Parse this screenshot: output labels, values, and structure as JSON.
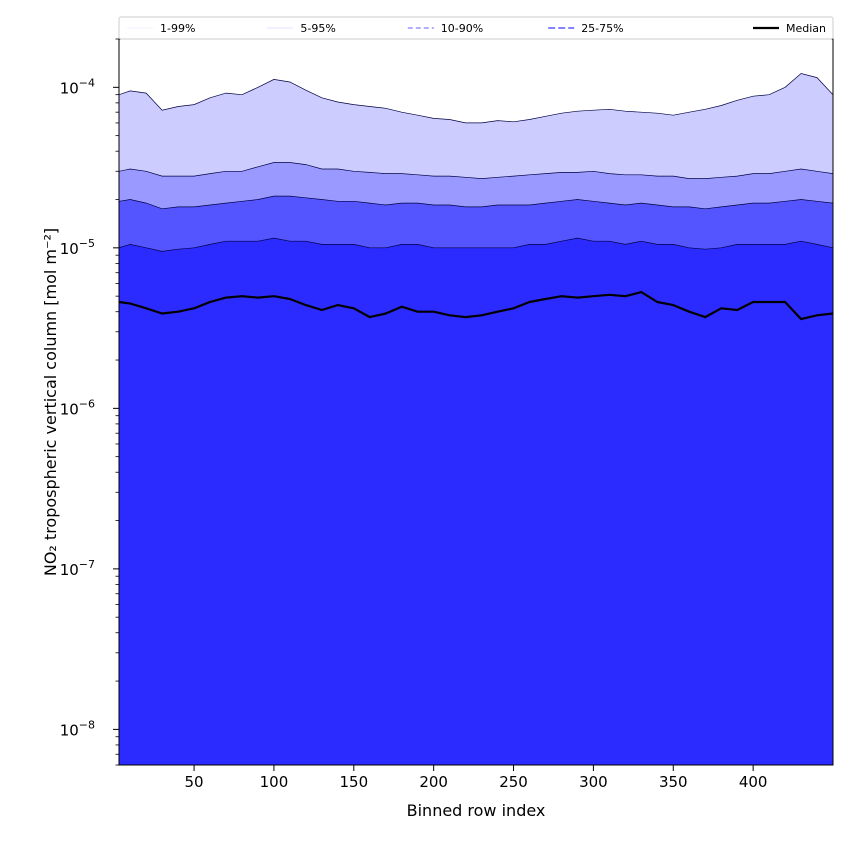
{
  "chart_data": {
    "type": "area",
    "title": "",
    "xlabel": "Binned row index",
    "ylabel": "NO₂ tropospheric vertical column [mol m⁻²]",
    "xlim": [
      3,
      450
    ],
    "ylim": [
      6e-09,
      0.0002
    ],
    "yscale": "log",
    "grid": false,
    "legend_position": "top",
    "x_ticks": [
      {
        "value": 50,
        "label": "50"
      },
      {
        "value": 100,
        "label": "100"
      },
      {
        "value": 150,
        "label": "150"
      },
      {
        "value": 200,
        "label": "200"
      },
      {
        "value": 250,
        "label": "250"
      },
      {
        "value": 300,
        "label": "300"
      },
      {
        "value": 350,
        "label": "350"
      },
      {
        "value": 400,
        "label": "400"
      }
    ],
    "y_ticks": [
      {
        "value": 1e-08,
        "base": "10",
        "exp": "−8"
      },
      {
        "value": 1e-07,
        "base": "10",
        "exp": "−7"
      },
      {
        "value": 1e-06,
        "base": "10",
        "exp": "−6"
      },
      {
        "value": 1e-05,
        "base": "10",
        "exp": "−5"
      },
      {
        "value": 0.0001,
        "base": "10",
        "exp": "−4"
      }
    ],
    "x": [
      3,
      10,
      20,
      30,
      40,
      50,
      60,
      70,
      80,
      90,
      100,
      110,
      120,
      130,
      140,
      150,
      160,
      170,
      180,
      190,
      200,
      210,
      220,
      230,
      240,
      250,
      260,
      270,
      280,
      290,
      300,
      310,
      320,
      330,
      340,
      350,
      360,
      370,
      380,
      390,
      400,
      410,
      420,
      430,
      440,
      450
    ],
    "bands": [
      {
        "name": "1-99%",
        "fill": "#ccccff",
        "line": "#e6e6ff",
        "dash": "none",
        "upper": [
          9e-05,
          9.5e-05,
          9.2e-05,
          7.2e-05,
          7.6e-05,
          7.8e-05,
          8.6e-05,
          9.2e-05,
          9e-05,
          0.0001,
          0.000112,
          0.000108,
          9.6e-05,
          8.6e-05,
          8.1e-05,
          7.8e-05,
          7.6e-05,
          7.4e-05,
          7e-05,
          6.7e-05,
          6.4e-05,
          6.3e-05,
          6e-05,
          6e-05,
          6.2e-05,
          6.1e-05,
          6.3e-05,
          6.6e-05,
          6.9e-05,
          7.1e-05,
          7.2e-05,
          7.3e-05,
          7.1e-05,
          7e-05,
          6.9e-05,
          6.7e-05,
          7e-05,
          7.3e-05,
          7.7e-05,
          8.3e-05,
          8.8e-05,
          9e-05,
          0.0001,
          0.000122,
          0.000115,
          9e-05
        ],
        "lower": [
          6e-09,
          6e-09,
          6e-09,
          6e-09,
          6e-09,
          6e-09,
          6e-09,
          6e-09,
          6e-09,
          6e-09,
          6e-09,
          6e-09,
          6e-09,
          6e-09,
          6e-09,
          6e-09,
          6e-09,
          6e-09,
          6e-09,
          6e-09,
          6e-09,
          6e-09,
          6e-09,
          6e-09,
          6e-09,
          6e-09,
          6e-09,
          6e-09,
          6e-09,
          6e-09,
          6e-09,
          6e-09,
          6e-09,
          6e-09,
          6e-09,
          6e-09,
          6e-09,
          6e-09,
          6e-09,
          6e-09,
          6e-09,
          6e-09,
          6e-09,
          6e-09,
          6e-09,
          6e-09
        ]
      },
      {
        "name": "5-95%",
        "fill": "#9999ff",
        "line": "#b3b3ff",
        "dash": "1,1",
        "upper": [
          3e-05,
          3.1e-05,
          3e-05,
          2.8e-05,
          2.8e-05,
          2.8e-05,
          2.9e-05,
          3e-05,
          3e-05,
          3.2e-05,
          3.4e-05,
          3.4e-05,
          3.3e-05,
          3.1e-05,
          3.1e-05,
          3e-05,
          2.95e-05,
          2.9e-05,
          2.9e-05,
          2.85e-05,
          2.8e-05,
          2.8e-05,
          2.75e-05,
          2.7e-05,
          2.75e-05,
          2.8e-05,
          2.85e-05,
          2.9e-05,
          2.95e-05,
          2.95e-05,
          3e-05,
          2.9e-05,
          2.85e-05,
          2.85e-05,
          2.8e-05,
          2.8e-05,
          2.7e-05,
          2.7e-05,
          2.75e-05,
          2.8e-05,
          2.9e-05,
          2.9e-05,
          3e-05,
          3.1e-05,
          3e-05,
          2.9e-05
        ],
        "lower": [
          6e-09,
          6e-09,
          6e-09,
          6e-09,
          6e-09,
          6e-09,
          6e-09,
          6e-09,
          6e-09,
          6e-09,
          6e-09,
          6e-09,
          6e-09,
          6e-09,
          6e-09,
          6e-09,
          6e-09,
          6e-09,
          6e-09,
          6e-09,
          6e-09,
          6e-09,
          6e-09,
          6e-09,
          6e-09,
          6e-09,
          6e-09,
          6e-09,
          6e-09,
          6e-09,
          6e-09,
          6e-09,
          6e-09,
          6e-09,
          6e-09,
          6e-09,
          6e-09,
          6e-09,
          6e-09,
          6e-09,
          6e-09,
          6e-09,
          6e-09,
          6e-09,
          6e-09,
          6e-09
        ]
      },
      {
        "name": "10-90%",
        "fill": "#5555ff",
        "line": "#8080ff",
        "dash": "5,3",
        "upper": [
          1.95e-05,
          2e-05,
          1.9e-05,
          1.75e-05,
          1.8e-05,
          1.8e-05,
          1.85e-05,
          1.9e-05,
          1.95e-05,
          2e-05,
          2.1e-05,
          2.1e-05,
          2.05e-05,
          2e-05,
          1.95e-05,
          1.95e-05,
          1.9e-05,
          1.85e-05,
          1.9e-05,
          1.9e-05,
          1.85e-05,
          1.85e-05,
          1.8e-05,
          1.8e-05,
          1.85e-05,
          1.85e-05,
          1.85e-05,
          1.9e-05,
          1.95e-05,
          2e-05,
          1.95e-05,
          1.9e-05,
          1.85e-05,
          1.9e-05,
          1.85e-05,
          1.8e-05,
          1.8e-05,
          1.75e-05,
          1.8e-05,
          1.85e-05,
          1.9e-05,
          1.9e-05,
          1.95e-05,
          2e-05,
          1.95e-05,
          1.9e-05
        ],
        "lower": [
          1e-07,
          1e-07,
          1e-07,
          1e-07,
          2e-07,
          3e-07,
          6e-07,
          8e-07,
          8e-07,
          8e-07,
          7e-07,
          7e-07,
          4e-07,
          1e-07,
          6e-09,
          6e-09,
          6e-09,
          6e-09,
          6e-09,
          6e-09,
          6e-09,
          6e-09,
          6e-09,
          6e-09,
          6e-09,
          6e-09,
          6e-09,
          6e-09,
          6e-09,
          6e-09,
          6e-09,
          6e-09,
          6e-09,
          6e-09,
          6e-09,
          6e-09,
          6e-09,
          6e-09,
          6e-09,
          6e-09,
          6e-09,
          6e-09,
          6e-09,
          6e-09,
          6e-09,
          6e-09
        ]
      },
      {
        "name": "25-75%",
        "fill": "#2b2bff",
        "line": "#5c5cff",
        "dash": "7,3",
        "upper": [
          1e-05,
          1.05e-05,
          1e-05,
          9.5e-06,
          9.8e-06,
          1e-05,
          1.05e-05,
          1.1e-05,
          1.1e-05,
          1.1e-05,
          1.15e-05,
          1.1e-05,
          1.1e-05,
          1.05e-05,
          1.05e-05,
          1.05e-05,
          1e-05,
          1e-05,
          1.05e-05,
          1.05e-05,
          1e-05,
          1e-05,
          1e-05,
          1e-05,
          1e-05,
          1e-05,
          1.05e-05,
          1.05e-05,
          1.1e-05,
          1.15e-05,
          1.1e-05,
          1.1e-05,
          1.05e-05,
          1.1e-05,
          1.05e-05,
          1.05e-05,
          1e-05,
          9.8e-06,
          1e-05,
          1.05e-05,
          1.05e-05,
          1.05e-05,
          1.05e-05,
          1.1e-05,
          1.05e-05,
          1e-05
        ],
        "lower": [
          6e-09,
          6e-09,
          6e-09,
          6e-09,
          6e-09,
          6e-09,
          6e-09,
          6e-09,
          6e-09,
          6e-09,
          6e-09,
          6e-09,
          6e-09,
          6e-09,
          6e-09,
          6e-09,
          6e-09,
          6e-09,
          6e-09,
          6e-09,
          6e-09,
          6e-09,
          6e-09,
          6e-09,
          6e-09,
          6e-09,
          6e-09,
          6e-09,
          6e-09,
          6e-09,
          6e-09,
          6e-09,
          6e-09,
          6e-09,
          6e-09,
          6e-09,
          6e-09,
          6e-09,
          6e-09,
          6e-09,
          6e-09,
          6e-09,
          6e-09,
          6e-09,
          6e-09,
          6e-09
        ]
      }
    ],
    "median": {
      "name": "Median",
      "color": "#000000",
      "values": [
        4.6e-06,
        4.5e-06,
        4.2e-06,
        3.9e-06,
        4e-06,
        4.2e-06,
        4.6e-06,
        4.9e-06,
        5e-06,
        4.9e-06,
        5e-06,
        4.8e-06,
        4.4e-06,
        4.1e-06,
        4.4e-06,
        4.2e-06,
        3.7e-06,
        3.9e-06,
        4.3e-06,
        4e-06,
        4e-06,
        3.8e-06,
        3.7e-06,
        3.8e-06,
        4e-06,
        4.2e-06,
        4.6e-06,
        4.8e-06,
        5e-06,
        4.9e-06,
        5e-06,
        5.1e-06,
        5e-06,
        5.3e-06,
        4.6e-06,
        4.4e-06,
        4e-06,
        3.7e-06,
        4.2e-06,
        4.1e-06,
        4.6e-06,
        4.6e-06,
        4.6e-06,
        3.6e-06,
        3.8e-06,
        3.9e-06
      ]
    },
    "legend": [
      {
        "label": "1-99%",
        "color": "#e6e6ff",
        "dash": "none",
        "width": 0.6
      },
      {
        "label": "5-95%",
        "color": "#b3b3ff",
        "dash": "1,1",
        "width": 0.8
      },
      {
        "label": "10-90%",
        "color": "#8080ff",
        "dash": "5,3",
        "width": 1.2
      },
      {
        "label": "25-75%",
        "color": "#5c5cff",
        "dash": "7,3",
        "width": 1.4
      },
      {
        "label": "Median",
        "color": "#000000",
        "dash": "none",
        "width": 2.2
      }
    ]
  }
}
